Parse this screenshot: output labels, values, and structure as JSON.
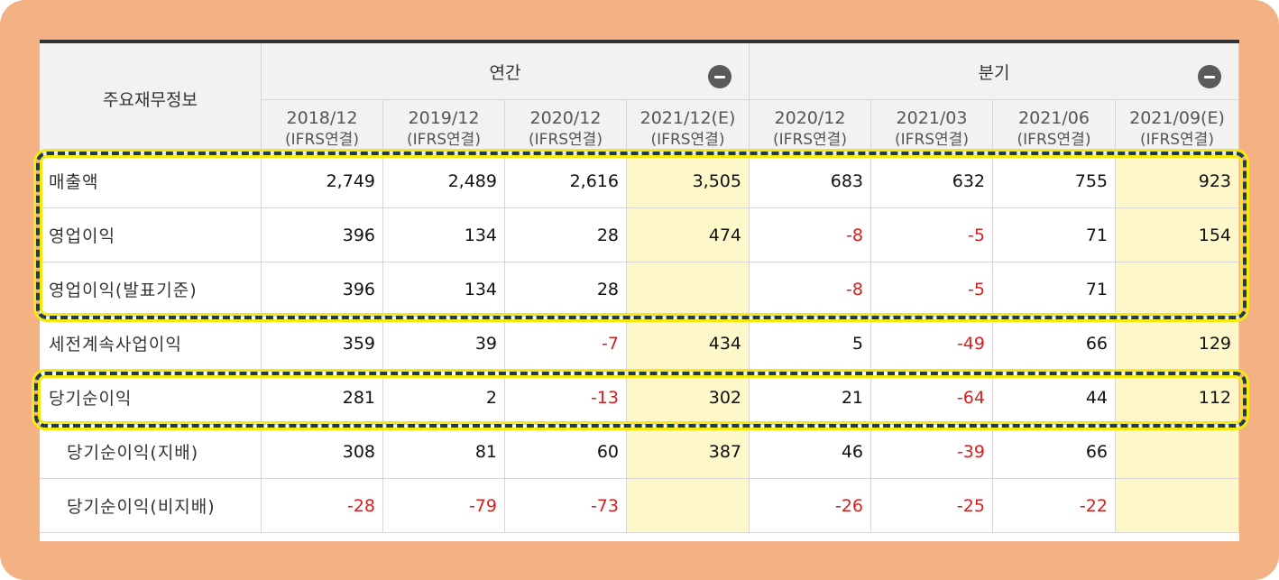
{
  "table": {
    "corner_label": "주요재무정보",
    "groups": [
      {
        "label": "연간"
      },
      {
        "label": "분기"
      }
    ],
    "columns": [
      {
        "period": "2018/12",
        "basis": "(IFRS연결)",
        "estimate": false
      },
      {
        "period": "2019/12",
        "basis": "(IFRS연결)",
        "estimate": false
      },
      {
        "period": "2020/12",
        "basis": "(IFRS연결)",
        "estimate": false
      },
      {
        "period": "2021/12(E)",
        "basis": "(IFRS연결)",
        "estimate": true
      },
      {
        "period": "2020/12",
        "basis": "(IFRS연결)",
        "estimate": false
      },
      {
        "period": "2021/03",
        "basis": "(IFRS연결)",
        "estimate": false
      },
      {
        "period": "2021/06",
        "basis": "(IFRS연결)",
        "estimate": false
      },
      {
        "period": "2021/09(E)",
        "basis": "(IFRS연결)",
        "estimate": true
      }
    ],
    "rows": [
      {
        "label": "매출액",
        "indent": false,
        "values": [
          "2,749",
          "2,489",
          "2,616",
          "3,505",
          "683",
          "632",
          "755",
          "923"
        ]
      },
      {
        "label": "영업이익",
        "indent": false,
        "values": [
          "396",
          "134",
          "28",
          "474",
          "-8",
          "-5",
          "71",
          "154"
        ]
      },
      {
        "label": "영업이익(발표기준)",
        "indent": false,
        "values": [
          "396",
          "134",
          "28",
          "",
          "-8",
          "-5",
          "71",
          ""
        ]
      },
      {
        "label": "세전계속사업이익",
        "indent": false,
        "values": [
          "359",
          "39",
          "-7",
          "434",
          "5",
          "-49",
          "66",
          "129"
        ]
      },
      {
        "label": "당기순이익",
        "indent": false,
        "values": [
          "281",
          "2",
          "-13",
          "302",
          "21",
          "-64",
          "44",
          "112"
        ]
      },
      {
        "label": "당기순이익(지배)",
        "indent": true,
        "values": [
          "308",
          "81",
          "60",
          "387",
          "46",
          "-39",
          "66",
          ""
        ]
      },
      {
        "label": "당기순이익(비지배)",
        "indent": true,
        "values": [
          "-28",
          "-79",
          "-73",
          "",
          "-26",
          "-25",
          "-22",
          ""
        ]
      }
    ]
  },
  "colors": {
    "frame": "#f4b183",
    "estimate_bg": "#fdf7c9",
    "negative": "#d62020",
    "highlight_dash": "#1f3b52",
    "highlight_glow": "#f5ea0c"
  }
}
